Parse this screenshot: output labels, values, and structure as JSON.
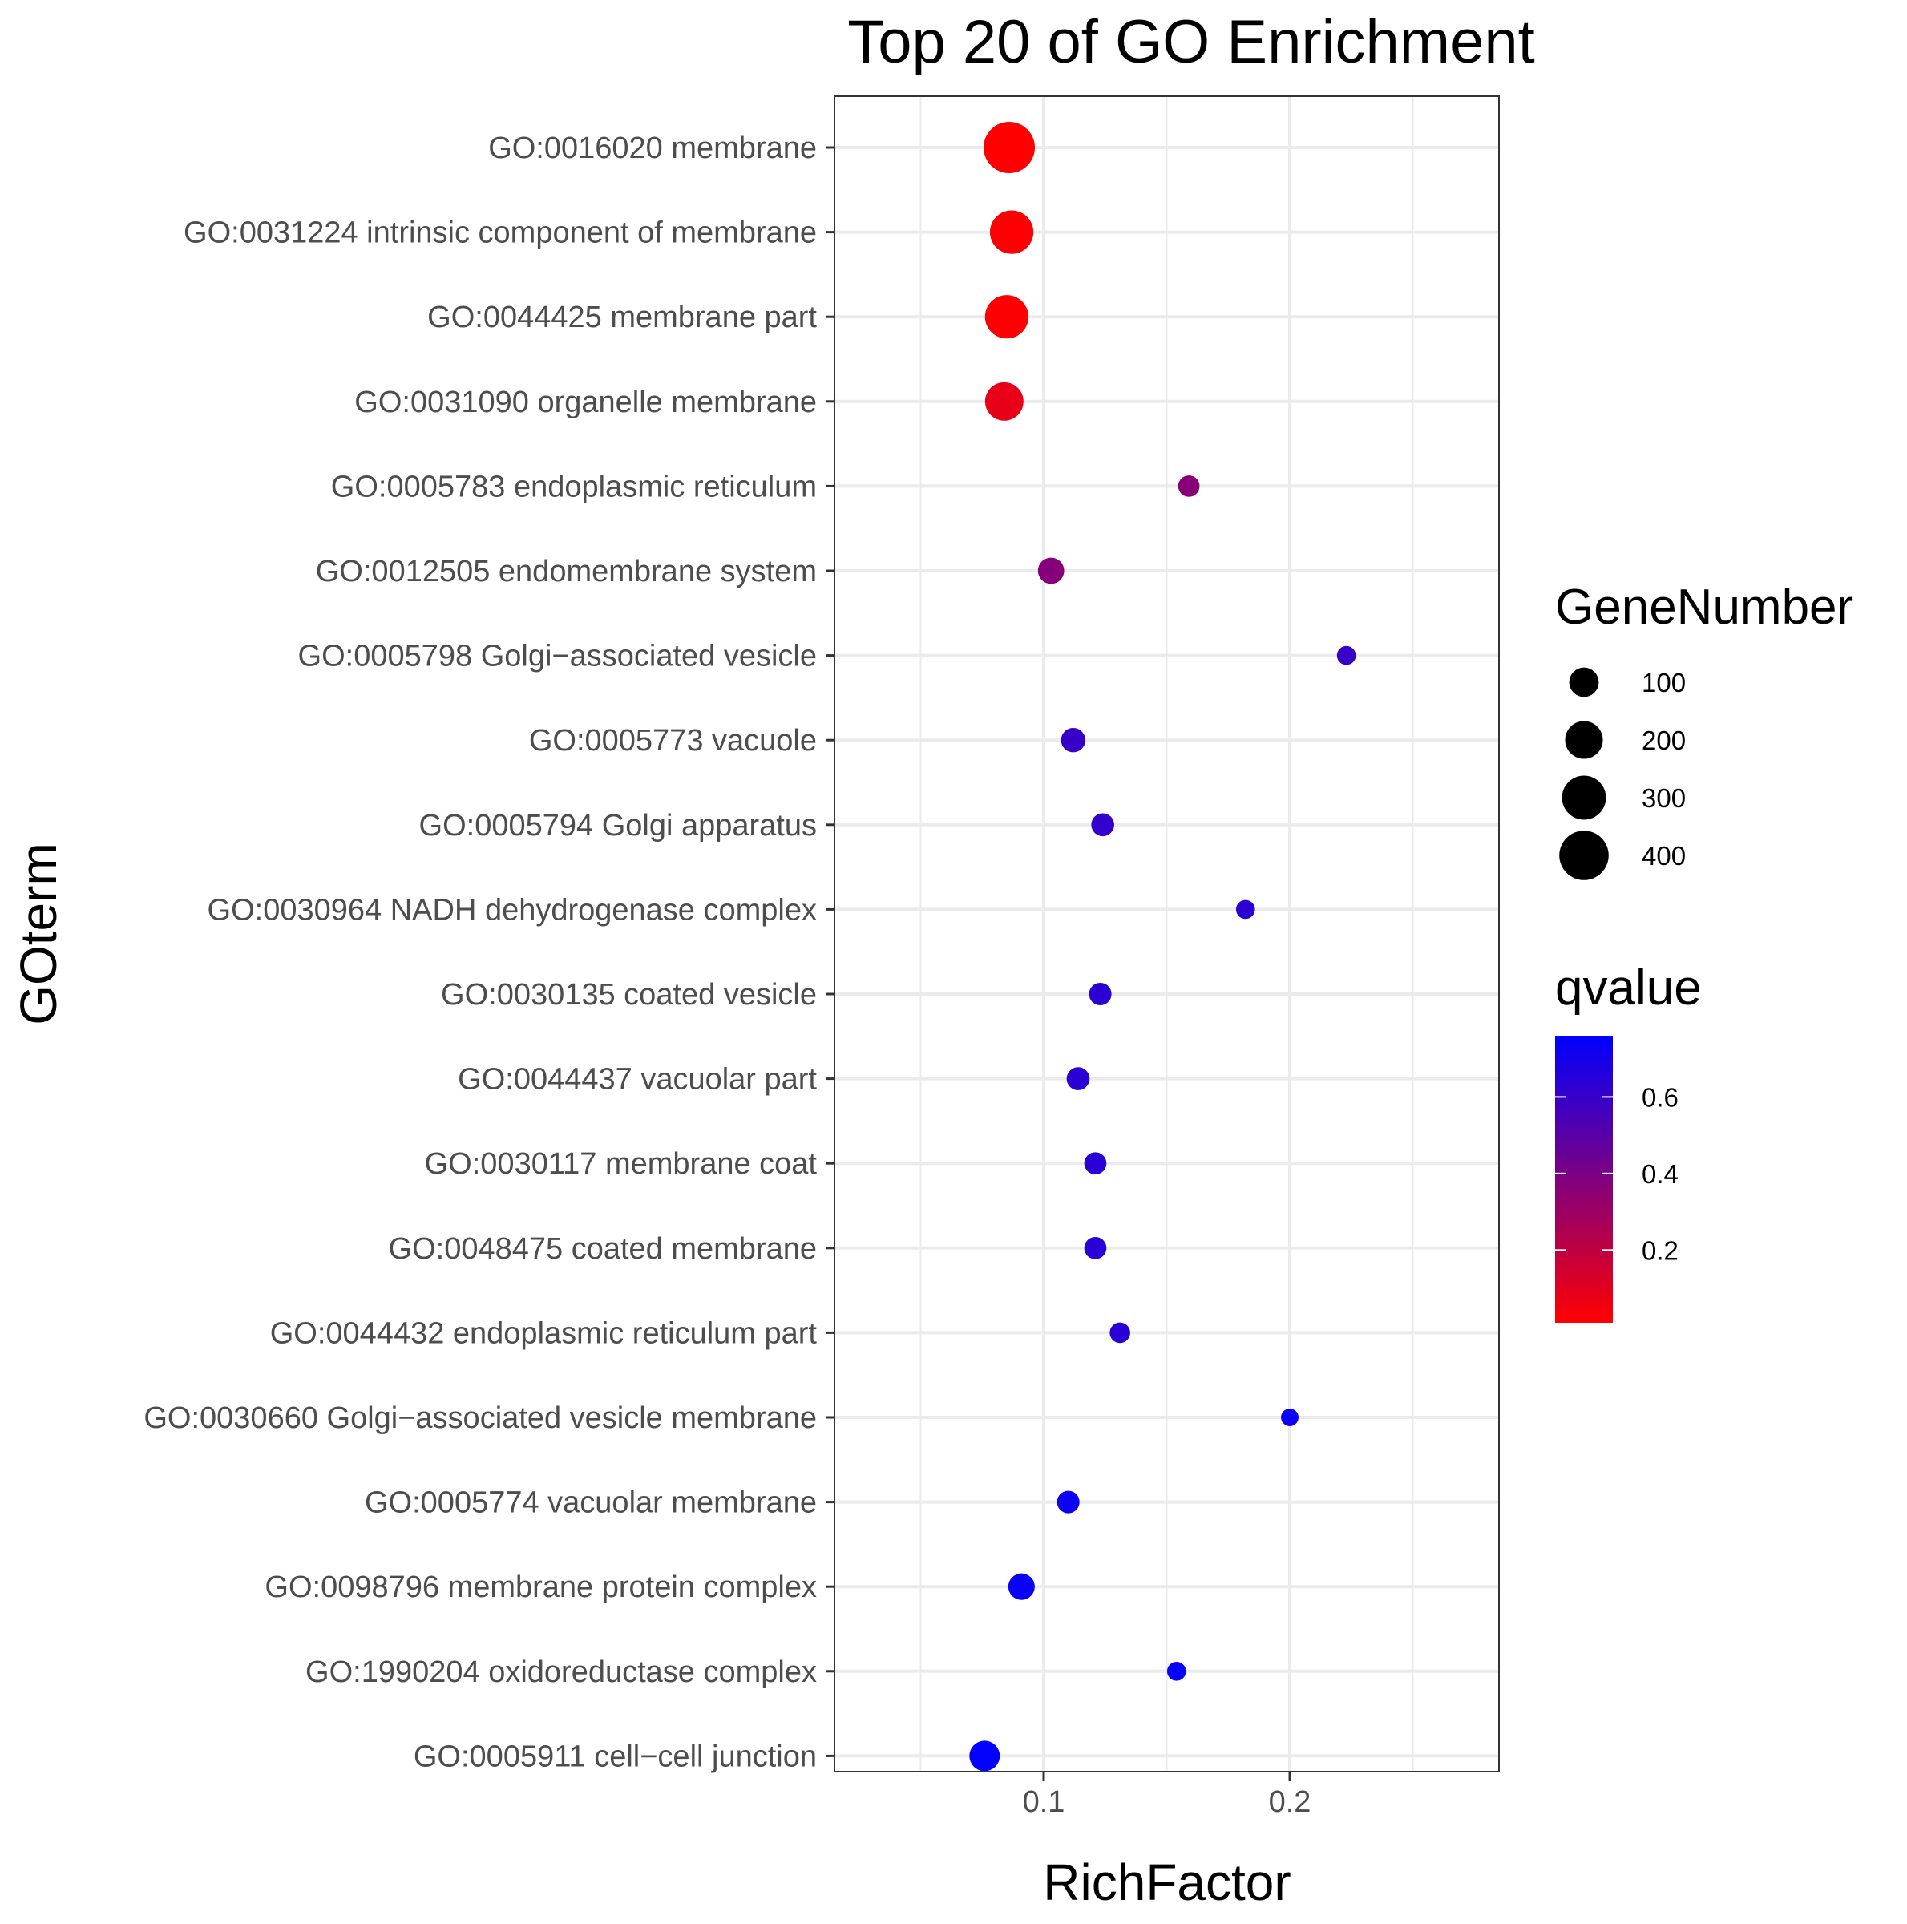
{
  "chart_data": {
    "type": "scatter",
    "title": "Top 20 of GO Enrichment",
    "xlabel": "RichFactor",
    "ylabel": "GOterm",
    "xlim": [
      0.015,
      0.285
    ],
    "xticks": [
      {
        "value": 0.1,
        "label": "0.1"
      },
      {
        "value": 0.2,
        "label": "0.2"
      }
    ],
    "grid": true,
    "categories": [
      "GO:0016020 membrane",
      "GO:0031224 intrinsic component of membrane",
      "GO:0044425 membrane part",
      "GO:0031090 organelle membrane",
      "GO:0005783 endoplasmic reticulum",
      "GO:0012505 endomembrane system",
      "GO:0005798 Golgi−associated vesicle",
      "GO:0005773 vacuole",
      "GO:0005794 Golgi apparatus",
      "GO:0030964 NADH dehydrogenase complex",
      "GO:0030135 coated vesicle",
      "GO:0044437 vacuolar part",
      "GO:0030117 membrane coat",
      "GO:0048475 coated membrane",
      "GO:0044432 endoplasmic reticulum part",
      "GO:0030660 Golgi−associated vesicle membrane",
      "GO:0005774 vacuolar membrane",
      "GO:0098796 membrane protein complex",
      "GO:1990204 oxidoreductase complex",
      "GO:0005911 cell−cell junction"
    ],
    "points": [
      {
        "term": "GO:0016020 membrane",
        "rich_factor": 0.086,
        "gene_number": 440,
        "qvalue": 0.01
      },
      {
        "term": "GO:0031224 intrinsic component of membrane",
        "rich_factor": 0.087,
        "gene_number": 290,
        "qvalue": 0.02
      },
      {
        "term": "GO:0044425 membrane part",
        "rich_factor": 0.085,
        "gene_number": 290,
        "qvalue": 0.02
      },
      {
        "term": "GO:0031090 organelle membrane",
        "rich_factor": 0.084,
        "gene_number": 210,
        "qvalue": 0.08
      },
      {
        "term": "GO:0005783 endoplasmic reticulum",
        "rich_factor": 0.159,
        "gene_number": 35,
        "qvalue": 0.36
      },
      {
        "term": "GO:0012505 endomembrane system",
        "rich_factor": 0.103,
        "gene_number": 70,
        "qvalue": 0.37
      },
      {
        "term": "GO:0005798 Golgi−associated vesicle",
        "rich_factor": 0.223,
        "gene_number": 22,
        "qvalue": 0.6
      },
      {
        "term": "GO:0005773 vacuole",
        "rich_factor": 0.112,
        "gene_number": 55,
        "qvalue": 0.6
      },
      {
        "term": "GO:0005794 Golgi apparatus",
        "rich_factor": 0.124,
        "gene_number": 45,
        "qvalue": 0.61
      },
      {
        "term": "GO:0030964 NADH dehydrogenase complex",
        "rich_factor": 0.182,
        "gene_number": 22,
        "qvalue": 0.63
      },
      {
        "term": "GO:0030135 coated vesicle",
        "rich_factor": 0.123,
        "gene_number": 42,
        "qvalue": 0.63
      },
      {
        "term": "GO:0044437 vacuolar part",
        "rich_factor": 0.114,
        "gene_number": 45,
        "qvalue": 0.64
      },
      {
        "term": "GO:0030117 membrane coat",
        "rich_factor": 0.121,
        "gene_number": 40,
        "qvalue": 0.64
      },
      {
        "term": "GO:0048475 coated membrane",
        "rich_factor": 0.121,
        "gene_number": 40,
        "qvalue": 0.64
      },
      {
        "term": "GO:0044432 endoplasmic reticulum part",
        "rich_factor": 0.131,
        "gene_number": 30,
        "qvalue": 0.64
      },
      {
        "term": "GO:0030660 Golgi−associated vesicle membrane",
        "rich_factor": 0.2,
        "gene_number": 16,
        "qvalue": 0.72
      },
      {
        "term": "GO:0005774 vacuolar membrane",
        "rich_factor": 0.11,
        "gene_number": 42,
        "qvalue": 0.72
      },
      {
        "term": "GO:0098796 membrane protein complex",
        "rich_factor": 0.091,
        "gene_number": 72,
        "qvalue": 0.73
      },
      {
        "term": "GO:1990204 oxidoreductase complex",
        "rich_factor": 0.154,
        "gene_number": 22,
        "qvalue": 0.74
      },
      {
        "term": "GO:0005911 cell−cell junction",
        "rich_factor": 0.076,
        "gene_number": 110,
        "qvalue": 0.75
      }
    ],
    "size_legend": {
      "title": "GeneNumber",
      "breaks": [
        100,
        200,
        300,
        400
      ],
      "labels": [
        "100",
        "200",
        "300",
        "400"
      ]
    },
    "color_legend": {
      "title": "qvalue",
      "low": 0.01,
      "high": 0.76,
      "low_color": "#ff0000",
      "high_color": "#0000ff",
      "breaks": [
        0.2,
        0.4,
        0.6
      ],
      "labels": [
        "0.2",
        "0.4",
        "0.6"
      ]
    },
    "legend_position": "right",
    "colors": {
      "grid": "#ebebeb",
      "panel_border": "#333333",
      "tick": "#333333"
    }
  }
}
